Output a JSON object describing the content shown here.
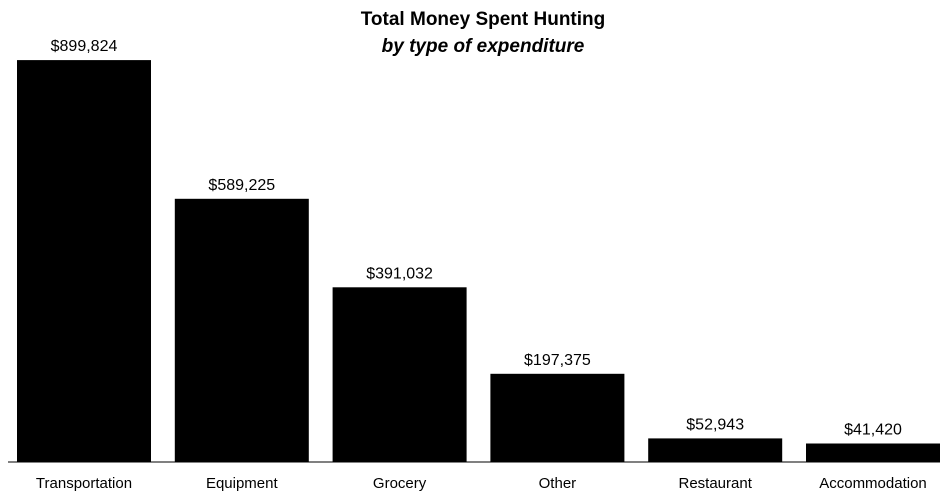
{
  "chart_data": {
    "type": "bar",
    "title": "Total Money Spent Hunting",
    "subtitle": "by type of expenditure",
    "categories": [
      "Transportation",
      "Equipment",
      "Grocery",
      "Other",
      "Restaurant",
      "Accommodation"
    ],
    "values": [
      899824,
      589225,
      391032,
      197375,
      52943,
      41420
    ],
    "value_labels": [
      "$899,824",
      "$589,225",
      "$391,032",
      "$197,375",
      "$52,943",
      "$41,420"
    ],
    "xlabel": "",
    "ylabel": "",
    "ylim": [
      0,
      900000
    ],
    "grid": false,
    "legend": "none",
    "colors": {
      "bar": "#000000",
      "axis": "#000000",
      "background": "#ffffff"
    }
  }
}
